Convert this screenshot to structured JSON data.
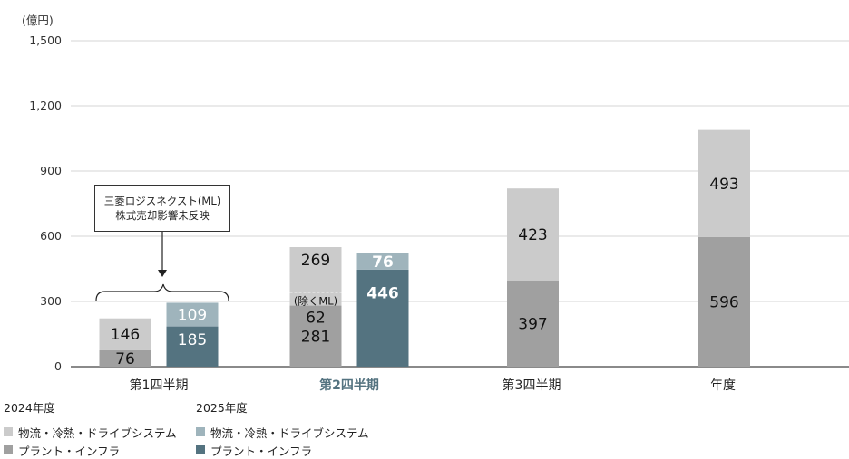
{
  "chart_data": {
    "type": "bar",
    "stacked": true,
    "unit_label": "(億円)",
    "ylim": [
      0,
      1500
    ],
    "yticks": [
      "0",
      "300",
      "600",
      "900",
      "1,200",
      "1,500"
    ],
    "ytick_values": [
      0,
      300,
      600,
      900,
      1200,
      1500
    ],
    "grid": true,
    "categories": [
      "第1四半期",
      "第2四半期",
      "第3四半期",
      "年度"
    ],
    "highlight_category": "第2四半期",
    "series_groups": [
      {
        "name": "2024年度",
        "series": [
          {
            "name": "プラント・インフラ",
            "color": "#a0a0a0",
            "values": [
              76,
              281,
              397,
              596
            ]
          },
          {
            "name": "物流・冷熱・ドライブシステム",
            "color": "#cbcbcb",
            "values": [
              146,
              269,
              423,
              493
            ]
          }
        ]
      },
      {
        "name": "2025年度",
        "series": [
          {
            "name": "プラント・インフラ",
            "color": "#547380",
            "values": [
              185,
              446,
              null,
              null
            ]
          },
          {
            "name": "物流・冷熱・ドライブシステム",
            "color": "#9fb4bc",
            "values": [
              109,
              76,
              null,
              null
            ]
          }
        ]
      }
    ],
    "annotations": {
      "q2_2024_excl_ml": {
        "label": "(除くML)",
        "value": 62
      },
      "q1_note": [
        "三菱ロジスネクスト(ML)",
        "株式売却影響未反映"
      ]
    }
  }
}
